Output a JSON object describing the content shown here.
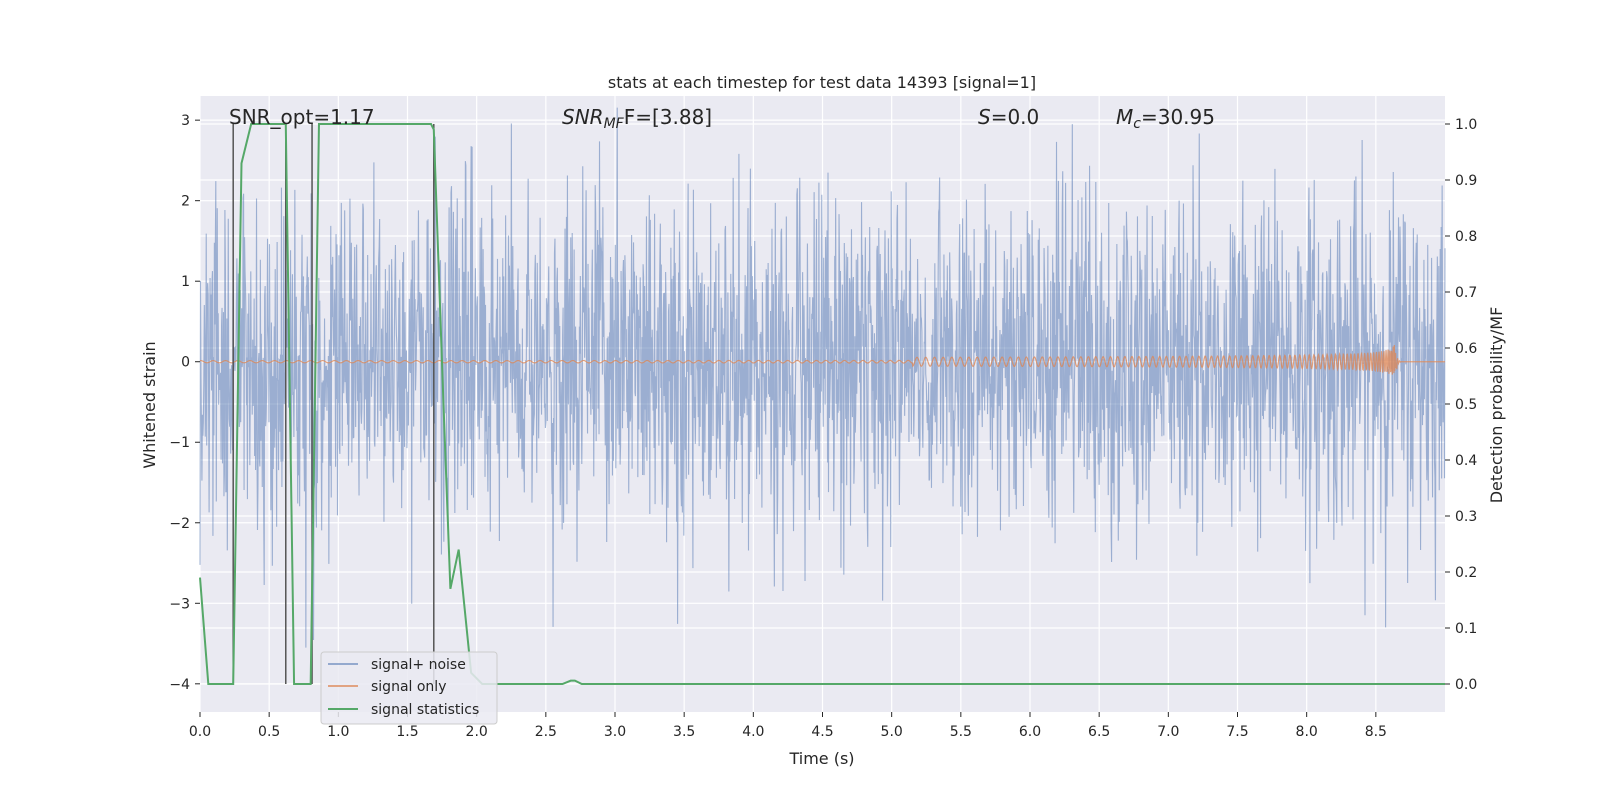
{
  "chart_data": {
    "type": "line",
    "title": "stats at each timestep for test data 14393 [signal=1]",
    "xlabel": "Time (s)",
    "ylabel": "Whitened strain",
    "ylabel_right": "Detection probability/MF",
    "xlim": [
      0,
      9.0
    ],
    "ylim": [
      -4.35,
      3.3
    ],
    "ylim_right": [
      -0.05,
      1.05
    ],
    "x_ticks": [
      "0.0",
      "0.5",
      "1.0",
      "1.5",
      "2.0",
      "2.5",
      "3.0",
      "3.5",
      "4.0",
      "4.5",
      "5.0",
      "5.5",
      "6.0",
      "6.5",
      "7.0",
      "7.5",
      "8.0",
      "8.5"
    ],
    "y_ticks": [
      "−4",
      "−3",
      "−2",
      "−1",
      "0",
      "1",
      "2",
      "3"
    ],
    "y_ticks_right": [
      "0.0",
      "0.1",
      "0.2",
      "0.3",
      "0.4",
      "0.5",
      "0.6",
      "0.7",
      "0.8",
      "0.9",
      "1.0"
    ],
    "grid": true,
    "legend_position": "lower-left",
    "legend": [
      "signal+ noise",
      "signal only",
      "signal statistics"
    ],
    "colors": {
      "signal_noise": "#4c72b0",
      "signal_only": "#dd8452",
      "signal_statistics": "#55a868",
      "vlines": "#555555",
      "background": "#eaeaf2"
    },
    "annotations": {
      "snr_opt": "SNR_opt=1.17",
      "snr_mf_text": "SNR",
      "snr_mf_sub": "MF",
      "snr_mf_value": "F=[3.88]",
      "s_var": "S",
      "s_value": "=0.0",
      "mc_var": "M",
      "mc_sub": "c",
      "mc_value": "=30.95"
    },
    "series": [
      {
        "name": "signal+ noise",
        "axis": "left",
        "description_kind": "noise",
        "amplitude_envelope": [
          -2.6,
          2.6
        ],
        "peak_range": [
          -3.7,
          3.4
        ]
      },
      {
        "name": "signal only",
        "axis": "left",
        "chirp_end_time": 8.65,
        "chirp_peak_amplitude": 0.3
      },
      {
        "name": "signal statistics",
        "axis": "right",
        "x": [
          0.0,
          0.06,
          0.12,
          0.24,
          0.3,
          0.37,
          0.44,
          0.55,
          0.62,
          0.68,
          0.74,
          0.8,
          0.86,
          0.92,
          1.0,
          1.67,
          1.69,
          1.76,
          1.81,
          1.87,
          1.96,
          2.04,
          2.2,
          2.62,
          2.68,
          2.71,
          2.76,
          2.85,
          9.0
        ],
        "values": [
          0.19,
          0.0,
          0.0,
          0.0,
          0.93,
          1.0,
          1.0,
          1.0,
          1.0,
          0.0,
          0.0,
          0.0,
          1.0,
          1.0,
          1.0,
          1.0,
          0.99,
          0.5,
          0.17,
          0.24,
          0.02,
          0.0,
          0.0,
          0.0,
          0.006,
          0.006,
          0.0,
          0.0,
          0.0
        ]
      }
    ],
    "vlines_x": [
      0.24,
      0.62,
      0.81,
      1.69
    ]
  }
}
